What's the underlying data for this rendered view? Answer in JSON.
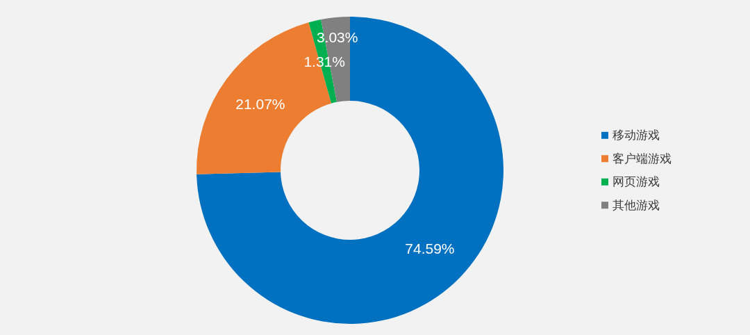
{
  "chart_data": {
    "type": "donut",
    "categories": [
      "移动游戏",
      "客户端游戏",
      "网页游戏",
      "其他游戏"
    ],
    "values": [
      74.59,
      21.07,
      1.31,
      3.03
    ],
    "colors": [
      "#0070c0",
      "#ed7d31",
      "#00b050",
      "#808080"
    ],
    "value_labels": [
      "74.59%",
      "21.07%",
      "1.31%",
      "3.03%"
    ],
    "legend": "right"
  }
}
